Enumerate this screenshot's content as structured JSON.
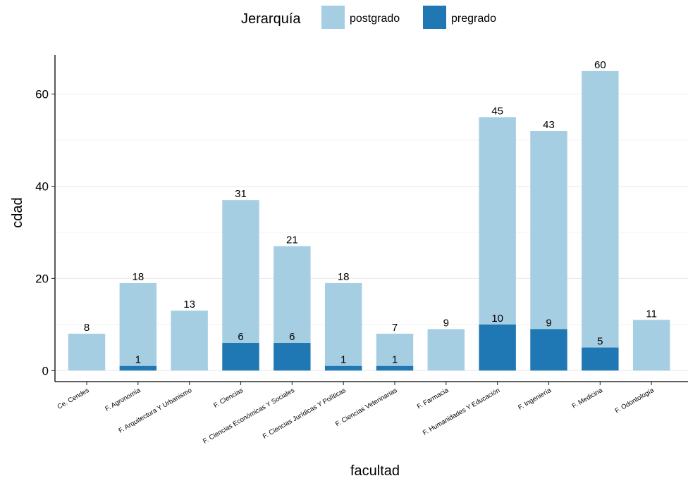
{
  "chart_data": {
    "type": "bar",
    "stacked": true,
    "xlabel": "facultad",
    "ylabel": "cdad",
    "ylim": [
      -2.4,
      68.5
    ],
    "yticks": [
      0,
      20,
      40,
      60
    ],
    "grid": "horizontal",
    "legend": {
      "title": "Jerarquía",
      "position": "top",
      "entries": [
        "postgrado",
        "pregrado"
      ]
    },
    "colors": {
      "postgrado": "#a6cee3",
      "pregrado": "#1f78b4",
      "grid": "#ebebeb"
    },
    "categories": [
      "Ce.  Cendes",
      "F. Agronomía",
      "F. Arquitectura Y Urbanismo",
      "F. Ciencias",
      "F. Ciencias Económicas Y Sociales",
      "F. Ciencias Jurídicas Y Políticas",
      "F. Ciencias Veterinarias",
      "F. Farmacia",
      "F. Humanidades Y Educación",
      "F. Ingeniería",
      "F. Medicina",
      "F. Odontología"
    ],
    "series": [
      {
        "name": "pregrado",
        "values": [
          0,
          1,
          0,
          6,
          6,
          1,
          1,
          0,
          10,
          9,
          5,
          0
        ]
      },
      {
        "name": "postgrado",
        "values": [
          8,
          18,
          13,
          31,
          21,
          18,
          7,
          9,
          45,
          43,
          60,
          11
        ]
      }
    ]
  }
}
